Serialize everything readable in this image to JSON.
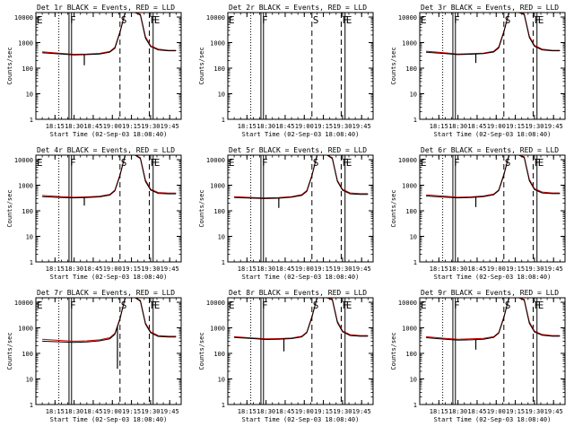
{
  "chart_data": {
    "type": "line",
    "subtitle": "Start Time (02-Sep-03 18:08:40)",
    "ylabel": "Counts/sec",
    "x_ticks": [
      "18:15",
      "18:30",
      "18:45",
      "19:00",
      "19:15",
      "19:30",
      "19:45"
    ],
    "x_tick_minutes": [
      15,
      30,
      45,
      60,
      75,
      90,
      105
    ],
    "xlim_minutes": [
      0,
      114
    ],
    "y_ticks": [
      "1",
      "10",
      "100",
      "1000",
      "10000"
    ],
    "ylim": [
      1,
      15000
    ],
    "y_scale": "log",
    "series_names": [
      "Events (black)",
      "LLD (red)"
    ],
    "series_colors": {
      "events": "#000000",
      "lld": "#cc0000"
    },
    "markers": [
      {
        "label": "E",
        "minute": 0,
        "style": "dotted"
      },
      {
        "label": "F",
        "minute": 26,
        "style": "solid"
      },
      {
        "label": "S",
        "minute": 66,
        "style": "dashed"
      },
      {
        "label": "F",
        "minute": 89,
        "style": "dashed"
      },
      {
        "label": "E",
        "minute": 92,
        "style": "solid"
      }
    ],
    "extra_lines": [
      {
        "minute": 18,
        "style": "dotted"
      },
      {
        "minute": 28,
        "style": "solid"
      }
    ],
    "curve_minutes": [
      5,
      20,
      30,
      40,
      50,
      58,
      62,
      66,
      70,
      74,
      78,
      82,
      86,
      90,
      96,
      104,
      110
    ],
    "panels": [
      {
        "title": "Det 1r BLACK = Events, RED = LLD",
        "has_data": true,
        "events": [
          400,
          360,
          330,
          340,
          360,
          420,
          600,
          2500,
          20000,
          20000,
          20000,
          12000,
          1500,
          700,
          520,
          480,
          480
        ],
        "lld": [
          440,
          380,
          350,
          360,
          380,
          450,
          650,
          2700,
          20000,
          20000,
          20000,
          13000,
          1700,
          760,
          560,
          500,
          500
        ],
        "dip": {
          "minute": 38,
          "value": 130
        }
      },
      {
        "title": "Det 2r BLACK = Events, RED = LLD",
        "has_data": false,
        "events": [],
        "lld": [],
        "dip": null
      },
      {
        "title": "Det 3r BLACK = Events, RED = LLD",
        "has_data": true,
        "events": [
          420,
          370,
          340,
          350,
          370,
          430,
          620,
          2600,
          20000,
          20000,
          20000,
          12500,
          1600,
          720,
          520,
          480,
          480
        ],
        "lld": [
          460,
          400,
          360,
          370,
          390,
          460,
          680,
          2800,
          20000,
          20000,
          20000,
          13500,
          1800,
          780,
          560,
          500,
          500
        ],
        "dip": {
          "minute": 44,
          "value": 160
        }
      },
      {
        "title": "Det 4r BLACK = Events, RED = LLD",
        "has_data": true,
        "events": [
          360,
          330,
          320,
          330,
          350,
          410,
          600,
          2400,
          20000,
          20000,
          20000,
          11000,
          1400,
          650,
          480,
          460,
          460
        ],
        "lld": [
          400,
          360,
          340,
          350,
          370,
          440,
          640,
          2600,
          20000,
          20000,
          20000,
          12000,
          1600,
          700,
          520,
          490,
          490
        ],
        "dip": {
          "minute": 38,
          "value": 160
        }
      },
      {
        "title": "Det 5r BLACK = Events, RED = LLD",
        "has_data": true,
        "events": [
          330,
          310,
          300,
          310,
          340,
          400,
          580,
          2300,
          20000,
          20000,
          20000,
          11000,
          1400,
          640,
          460,
          440,
          440
        ],
        "lld": [
          360,
          330,
          320,
          330,
          360,
          430,
          620,
          2500,
          20000,
          20000,
          20000,
          12000,
          1550,
          690,
          500,
          470,
          470
        ],
        "dip": {
          "minute": 40,
          "value": 130
        }
      },
      {
        "title": "Det 6r BLACK = Events, RED = LLD",
        "has_data": true,
        "events": [
          380,
          340,
          320,
          330,
          360,
          420,
          620,
          2500,
          20000,
          20000,
          20000,
          12000,
          1500,
          680,
          500,
          470,
          470
        ],
        "lld": [
          420,
          370,
          340,
          350,
          380,
          450,
          660,
          2700,
          20000,
          20000,
          20000,
          13000,
          1700,
          740,
          540,
          500,
          500
        ],
        "dip": {
          "minute": 44,
          "value": 140
        }
      },
      {
        "title": "Det 7r BLACK = Events, RED = LLD",
        "has_data": true,
        "events": [
          300,
          280,
          270,
          280,
          310,
          370,
          560,
          2200,
          20000,
          20000,
          20000,
          11000,
          1400,
          640,
          460,
          440,
          440
        ],
        "lld": [
          360,
          320,
          300,
          310,
          340,
          410,
          610,
          2400,
          20000,
          20000,
          20000,
          12000,
          1550,
          700,
          500,
          470,
          470
        ],
        "dip": {
          "minute": 64,
          "value": 25
        }
      },
      {
        "title": "Det 8r BLACK = Events, RED = LLD",
        "has_data": true,
        "events": [
          420,
          380,
          350,
          360,
          380,
          440,
          640,
          2600,
          20000,
          20000,
          20000,
          12500,
          1600,
          700,
          500,
          470,
          470
        ],
        "lld": [
          450,
          400,
          370,
          380,
          400,
          470,
          690,
          2800,
          20000,
          20000,
          20000,
          13500,
          1800,
          760,
          540,
          500,
          500
        ],
        "dip": {
          "minute": 44,
          "value": 120
        }
      },
      {
        "title": "Det 9r BLACK = Events, RED = LLD",
        "has_data": true,
        "events": [
          410,
          360,
          330,
          340,
          360,
          420,
          620,
          2500,
          20000,
          20000,
          20000,
          12000,
          1500,
          690,
          510,
          470,
          470
        ],
        "lld": [
          450,
          390,
          360,
          370,
          390,
          450,
          660,
          2700,
          20000,
          20000,
          20000,
          13000,
          1700,
          750,
          550,
          500,
          500
        ],
        "dip": {
          "minute": 44,
          "value": 140
        }
      }
    ]
  }
}
